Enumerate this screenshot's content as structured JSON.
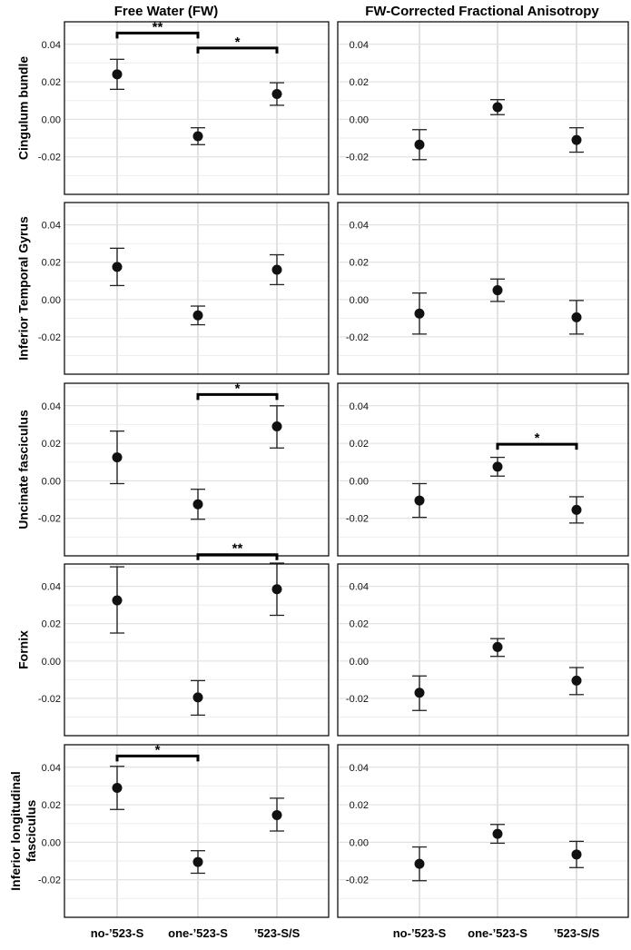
{
  "column_titles": [
    "Free Water (FW)",
    "FW-Corrected Fractional Anisotropy"
  ],
  "row_labels": [
    [
      "Cingulum bundle"
    ],
    [
      "Inferior Temporal Gyrus"
    ],
    [
      "Uncinate fasciculus"
    ],
    [
      "Fornix"
    ],
    [
      "Inferior longitudinal",
      "fasciculus"
    ]
  ],
  "categories": [
    "no-’523-S",
    "one-’523-S",
    "’523-S/S"
  ],
  "chart_data": [
    {
      "type": "scatter",
      "row": 0,
      "col": 0,
      "title": "Free Water (FW)",
      "ylabel": "Cingulum bundle",
      "ylim": [
        -0.04,
        0.052
      ],
      "yticks": [
        -0.02,
        0.0,
        0.02,
        0.04
      ],
      "ytick_labels": [
        "-0.02",
        "0.00",
        "0.02",
        "0.04"
      ],
      "mean": [
        0.024,
        -0.009,
        0.0135
      ],
      "lower": [
        0.016,
        -0.0135,
        0.0075
      ],
      "upper": [
        0.032,
        -0.0045,
        0.0195
      ],
      "significance": [
        {
          "from": 0,
          "to": 1,
          "label": "**",
          "y": 0.046
        },
        {
          "from": 1,
          "to": 2,
          "label": "*",
          "y": 0.038
        }
      ]
    },
    {
      "type": "scatter",
      "row": 0,
      "col": 1,
      "title": "FW-Corrected Fractional Anisotropy",
      "ylabel": "Cingulum bundle",
      "ylim": [
        -0.04,
        0.052
      ],
      "yticks": [
        -0.02,
        0.0,
        0.02,
        0.04
      ],
      "ytick_labels": [
        "-0.02",
        "0.00",
        "0.02",
        "0.04"
      ],
      "mean": [
        -0.0135,
        0.0065,
        -0.011
      ],
      "lower": [
        -0.0215,
        0.0025,
        -0.0175
      ],
      "upper": [
        -0.0055,
        0.0105,
        -0.0045
      ],
      "significance": []
    },
    {
      "type": "scatter",
      "row": 1,
      "col": 0,
      "title": "Free Water (FW)",
      "ylabel": "Inferior Temporal Gyrus",
      "ylim": [
        -0.04,
        0.052
      ],
      "yticks": [
        -0.02,
        0.0,
        0.02,
        0.04
      ],
      "ytick_labels": [
        "-0.02",
        "0.00",
        "0.02",
        "0.04"
      ],
      "mean": [
        0.0175,
        -0.0085,
        0.016
      ],
      "lower": [
        0.0075,
        -0.0135,
        0.008
      ],
      "upper": [
        0.0275,
        -0.0035,
        0.024
      ],
      "significance": []
    },
    {
      "type": "scatter",
      "row": 1,
      "col": 1,
      "title": "FW-Corrected Fractional Anisotropy",
      "ylabel": "Inferior Temporal Gyrus",
      "ylim": [
        -0.04,
        0.052
      ],
      "yticks": [
        -0.02,
        0.0,
        0.02,
        0.04
      ],
      "ytick_labels": [
        "-0.02",
        "0.00",
        "0.02",
        "0.04"
      ],
      "mean": [
        -0.0075,
        0.005,
        -0.0095
      ],
      "lower": [
        -0.0185,
        -0.001,
        -0.0185
      ],
      "upper": [
        0.0035,
        0.011,
        -0.0005
      ],
      "significance": []
    },
    {
      "type": "scatter",
      "row": 2,
      "col": 0,
      "title": "Free Water (FW)",
      "ylabel": "Uncinate fasciculus",
      "ylim": [
        -0.04,
        0.052
      ],
      "yticks": [
        -0.02,
        0.0,
        0.02,
        0.04
      ],
      "ytick_labels": [
        "-0.02",
        "0.00",
        "0.02",
        "0.04"
      ],
      "mean": [
        0.0125,
        -0.0125,
        0.029
      ],
      "lower": [
        -0.0015,
        -0.0205,
        0.0175
      ],
      "upper": [
        0.0265,
        -0.0045,
        0.04
      ],
      "significance": [
        {
          "from": 1,
          "to": 2,
          "label": "*",
          "y": 0.046
        }
      ]
    },
    {
      "type": "scatter",
      "row": 2,
      "col": 1,
      "title": "FW-Corrected Fractional Anisotropy",
      "ylabel": "Uncinate fasciculus",
      "ylim": [
        -0.04,
        0.052
      ],
      "yticks": [
        -0.02,
        0.0,
        0.02,
        0.04
      ],
      "ytick_labels": [
        "-0.02",
        "0.00",
        "0.02",
        "0.04"
      ],
      "mean": [
        -0.0105,
        0.0075,
        -0.0155
      ],
      "lower": [
        -0.0195,
        0.0025,
        -0.0225
      ],
      "upper": [
        -0.0015,
        0.0125,
        -0.0085
      ],
      "significance": [
        {
          "from": 1,
          "to": 2,
          "label": "*",
          "y": 0.0195
        }
      ]
    },
    {
      "type": "scatter",
      "row": 3,
      "col": 0,
      "title": "Free Water (FW)",
      "ylabel": "Fornix",
      "ylim": [
        -0.04,
        0.052
      ],
      "yticks": [
        -0.02,
        0.0,
        0.02,
        0.04
      ],
      "ytick_labels": [
        "-0.02",
        "0.00",
        "0.02",
        "0.04"
      ],
      "mean": [
        0.0325,
        -0.0195,
        0.0385
      ],
      "lower": [
        0.015,
        -0.029,
        0.0245
      ],
      "upper": [
        0.0505,
        -0.0105,
        0.0525
      ],
      "significance": [
        {
          "from": 1,
          "to": 2,
          "label": "**",
          "y": 0.057
        }
      ]
    },
    {
      "type": "scatter",
      "row": 3,
      "col": 1,
      "title": "FW-Corrected Fractional Anisotropy",
      "ylabel": "Fornix",
      "ylim": [
        -0.04,
        0.052
      ],
      "yticks": [
        -0.02,
        0.0,
        0.02,
        0.04
      ],
      "ytick_labels": [
        "-0.02",
        "0.00",
        "0.02",
        "0.04"
      ],
      "mean": [
        -0.017,
        0.0075,
        -0.0105
      ],
      "lower": [
        -0.0265,
        0.0025,
        -0.018
      ],
      "upper": [
        -0.008,
        0.012,
        -0.0035
      ],
      "significance": []
    },
    {
      "type": "scatter",
      "row": 4,
      "col": 0,
      "title": "Free Water (FW)",
      "ylabel": "Inferior longitudinal fasciculus",
      "ylim": [
        -0.04,
        0.052
      ],
      "yticks": [
        -0.02,
        0.0,
        0.02,
        0.04
      ],
      "ytick_labels": [
        "-0.02",
        "0.00",
        "0.02",
        "0.04"
      ],
      "mean": [
        0.029,
        -0.0105,
        0.0145
      ],
      "lower": [
        0.0175,
        -0.0165,
        0.006
      ],
      "upper": [
        0.0405,
        -0.0045,
        0.0235
      ],
      "significance": [
        {
          "from": 0,
          "to": 1,
          "label": "*",
          "y": 0.046
        }
      ]
    },
    {
      "type": "scatter",
      "row": 4,
      "col": 1,
      "title": "FW-Corrected Fractional Anisotropy",
      "ylabel": "Inferior longitudinal fasciculus",
      "ylim": [
        -0.04,
        0.052
      ],
      "yticks": [
        -0.02,
        0.0,
        0.02,
        0.04
      ],
      "ytick_labels": [
        "-0.02",
        "0.00",
        "0.02",
        "0.04"
      ],
      "mean": [
        -0.0115,
        0.0045,
        -0.0065
      ],
      "lower": [
        -0.0205,
        -0.0005,
        -0.0135
      ],
      "upper": [
        -0.0025,
        0.0095,
        0.0005
      ],
      "significance": []
    }
  ]
}
